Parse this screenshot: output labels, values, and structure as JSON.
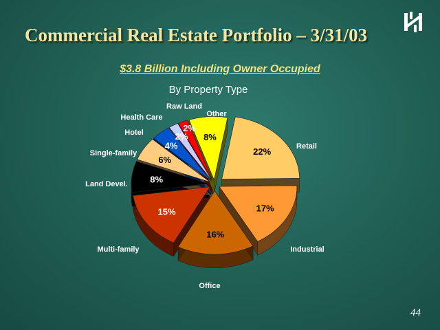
{
  "slide": {
    "title": "Commercial Real Estate Portfolio – 3/31/03",
    "subtitle": "$3.8 Billion Including Owner Occupied",
    "page_number": "44"
  },
  "logo": {
    "icon": "bank-logo-icon"
  },
  "chart_data": {
    "type": "pie",
    "title": "By Property Type",
    "categories": [
      "Retail",
      "Industrial",
      "Office",
      "Multi-family",
      "Land Devel.",
      "Single-family",
      "Hotel",
      "Health Care",
      "Raw Land",
      "Other"
    ],
    "values": [
      22,
      17,
      16,
      15,
      8,
      6,
      4,
      2,
      2,
      8
    ],
    "value_labels": [
      "22%",
      "17%",
      "16%",
      "15%",
      "8%",
      "6%",
      "4%",
      "2%",
      "2%",
      "8%"
    ],
    "colors": [
      "#ffcc66",
      "#ff9933",
      "#cc6600",
      "#cc3300",
      "#000000",
      "#ffcc80",
      "#0055cc",
      "#ccccff",
      "#ff0000",
      "#ffff00"
    ],
    "three_d": true,
    "exploded": true
  }
}
